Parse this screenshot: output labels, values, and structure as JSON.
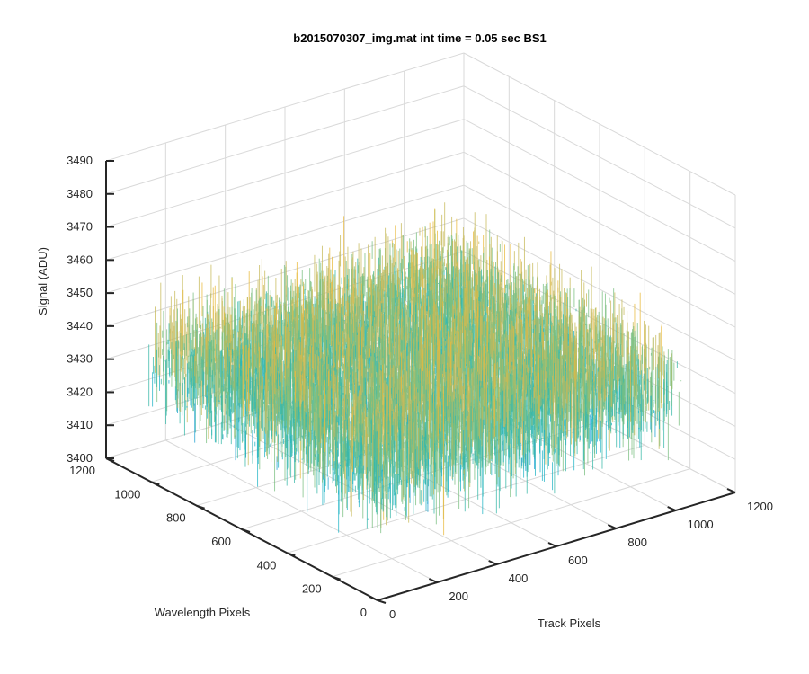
{
  "chart_data": {
    "type": "surface",
    "title": "b2015070307_img.mat int time = 0.05 sec   BS1",
    "xlabel": "Track Pixels",
    "ylabel": "Wavelength Pixels",
    "zlabel": "Signal (ADU)",
    "xlim": [
      0,
      1200
    ],
    "ylim": [
      0,
      1200
    ],
    "zlim": [
      3400,
      3490
    ],
    "xticks": [
      "0",
      "200",
      "400",
      "600",
      "800",
      "1000",
      "1200"
    ],
    "yticks": [
      "0",
      "200",
      "400",
      "600",
      "800",
      "1000",
      "1200"
    ],
    "zticks": [
      "3400",
      "3410",
      "3420",
      "3430",
      "3440",
      "3450",
      "3460",
      "3470",
      "3480",
      "3490"
    ],
    "data_extent": {
      "x": [
        0,
        1024
      ],
      "y": [
        0,
        1024
      ]
    },
    "signal_mean": 3437,
    "signal_min": 3405,
    "signal_max": 3468,
    "colormap": "parula",
    "colors": [
      "#0072bd",
      "#1b9fd0",
      "#21b4c5",
      "#38b8a8",
      "#79bf80",
      "#c7b95a",
      "#e8b93c"
    ],
    "grid": true,
    "box": "on"
  }
}
